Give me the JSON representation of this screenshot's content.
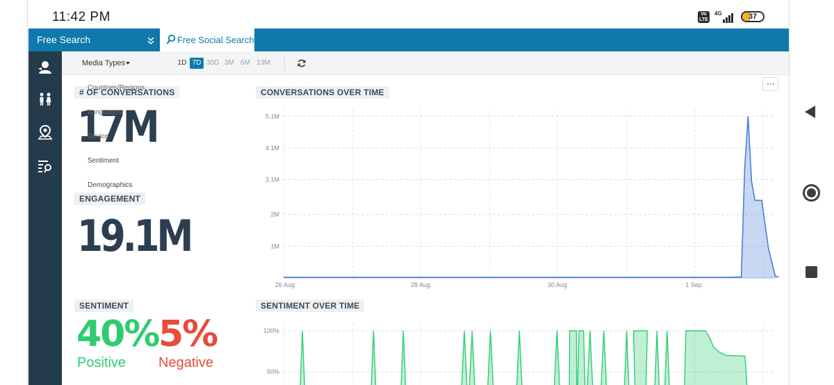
{
  "status_bar": {
    "time": "11:42 PM",
    "volte": "Vo LTE",
    "network": "4G",
    "battery": "37",
    "battery_level": 0.37
  },
  "header": {
    "search_type": "Free Search",
    "tab_label": "Free Social Search",
    "accent_color": "#0e7aab"
  },
  "sidebar": {
    "items": [
      {
        "icon": "user-icon"
      },
      {
        "icon": "people-icon"
      },
      {
        "icon": "location-pin-icon"
      },
      {
        "icon": "list-search-icon"
      }
    ],
    "background": "#243b4c"
  },
  "toolbar": {
    "media_types": "Media Types",
    "ranges": [
      "1D",
      "7D",
      "30D",
      "3M",
      "6M",
      "13M"
    ],
    "active_range": "7D",
    "refresh_icon": "refresh-icon"
  },
  "dropdown": {
    "items": [
      "Countries/Regions",
      "Languages",
      "Device",
      "Sentiment",
      "Demographics"
    ]
  },
  "widgets": {
    "conversations": {
      "label": "# OF CONVERSATIONS",
      "value": "17M"
    },
    "engagement": {
      "label": "ENGAGEMENT",
      "value": "19.1M"
    },
    "sentiment": {
      "label": "SENTIMENT",
      "positive_value": "40%",
      "positive_label": "Positive",
      "negative_value": "5%",
      "negative_label": "Negative",
      "positive_color": "#2ecc71",
      "negative_color": "#e74c3c"
    },
    "conversations_chart_title": "CONVERSATIONS OVER TIME",
    "sentiment_chart_title": "SENTIMENT OVER TIME"
  },
  "chart_data": [
    {
      "type": "area",
      "title": "CONVERSATIONS OVER TIME",
      "x_ticks": [
        "26 Aug",
        "28 Aug",
        "30 Aug",
        "1 Sep"
      ],
      "y_ticks": [
        "1M",
        "2M",
        "3.1M",
        "4.1M",
        "5.1M"
      ],
      "ylim": [
        0,
        5.2
      ],
      "grid": true,
      "color": "#4a7fd6",
      "series": [
        {
          "x": [
            "25 Aug",
            "26 Aug",
            "27 Aug",
            "28 Aug",
            "29 Aug",
            "30 Aug",
            "31 Aug",
            "1 Sep",
            "1.5 Sep",
            "1.7 Sep",
            "1.75 Sep",
            "1.8 Sep",
            "1.85 Sep",
            "1.9 Sep",
            "2.0 Sep",
            "2.1 Sep",
            "2.2 Sep",
            "2.5 Sep"
          ],
          "values": [
            0.02,
            0.02,
            0.02,
            0.02,
            0.02,
            0.02,
            0.02,
            0.02,
            0.02,
            0.03,
            3.4,
            5.0,
            3.0,
            2.4,
            2.4,
            0.9,
            0.05,
            0.02
          ]
        }
      ]
    },
    {
      "type": "area",
      "title": "SENTIMENT OVER TIME",
      "y_ticks": [
        "50%",
        "100%"
      ],
      "ylim": [
        0,
        100
      ],
      "grid": true,
      "color": "#2ecc71",
      "note_visible": "chart clipped at bottom of screen",
      "series": [
        {
          "x": [
            0.0,
            0.03,
            0.06,
            0.18,
            0.2,
            0.24,
            0.33,
            0.35,
            0.36,
            0.38,
            0.4,
            0.44,
            0.47,
            0.49,
            0.52,
            0.54,
            0.56,
            0.57,
            0.58,
            0.6,
            0.62,
            0.64,
            0.66,
            0.71,
            0.73,
            0.76,
            0.78,
            0.8,
            0.82,
            0.84,
            0.86,
            0.9,
            0.92,
            0.94,
            0.96,
            1.0
          ],
          "values": [
            0,
            100,
            0,
            100,
            0,
            100,
            0,
            100,
            0,
            100,
            0,
            100,
            0,
            100,
            0,
            100,
            100,
            0,
            100,
            0,
            100,
            0,
            100,
            0,
            100,
            100,
            0,
            100,
            0,
            100,
            0,
            100,
            100,
            85,
            70,
            70
          ]
        }
      ]
    }
  ]
}
